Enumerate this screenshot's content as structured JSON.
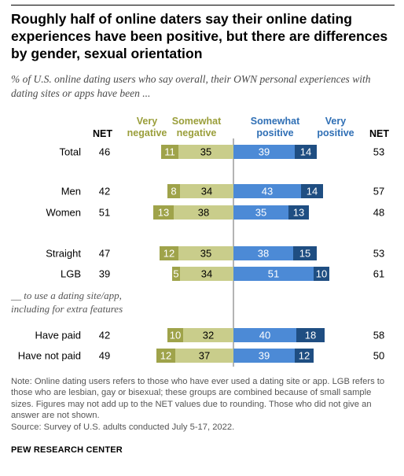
{
  "title": "Roughly half of online daters say their online dating experiences have been positive, but there are differences by gender, sexual orientation",
  "subtitle": "% of U.S. online dating users who say overall, their OWN personal experiences with dating sites or apps have been ...",
  "headers": {
    "net_left": "NET",
    "very_negative": "Very negative",
    "somewhat_negative": "Somewhat negative",
    "somewhat_positive": "Somewhat positive",
    "very_positive": "Very positive",
    "net_right": "NET"
  },
  "colors": {
    "very_negative": "#9fa34a",
    "somewhat_negative": "#c9cd8b",
    "somewhat_positive": "#4c8ad6",
    "very_positive": "#1f4e82",
    "divider": "#9b9b9b"
  },
  "note": "Note: Online dating users refers to those who have ever used a dating site or app. LGB refers to those who are lesbian, gay or bisexual; these groups are combined because of small sample sizes. Figures may not add up to the NET values due to rounding. Those who did not give an answer are not shown.",
  "source": "Source: Survey of U.S. adults conducted July 5-17, 2022.",
  "brand": "PEW RESEARCH CENTER",
  "chart_data": {
    "type": "bar",
    "orientation": "horizontal-diverging",
    "categories": [
      "Total",
      "Men",
      "Women",
      "Straight",
      "LGB",
      "Have paid",
      "Have not paid"
    ],
    "group_label": "__ to use a dating site/app, including for extra features",
    "series": [
      {
        "name": "Very negative",
        "values": [
          11,
          8,
          13,
          12,
          5,
          10,
          12
        ]
      },
      {
        "name": "Somewhat negative",
        "values": [
          35,
          34,
          38,
          35,
          34,
          32,
          37
        ]
      },
      {
        "name": "Somewhat positive",
        "values": [
          39,
          43,
          35,
          38,
          51,
          40,
          39
        ]
      },
      {
        "name": "Very positive",
        "values": [
          14,
          14,
          13,
          15,
          10,
          18,
          12
        ]
      }
    ],
    "net_negative": [
      46,
      42,
      51,
      47,
      39,
      42,
      49
    ],
    "net_positive": [
      53,
      57,
      48,
      53,
      61,
      58,
      50
    ]
  }
}
